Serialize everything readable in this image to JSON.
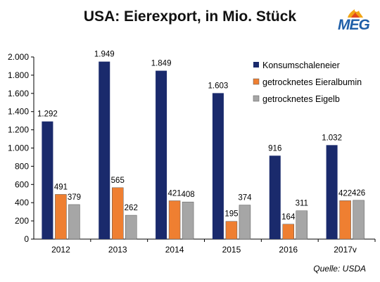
{
  "title": "USA: Eierexport, in Mio. Stück",
  "logo": {
    "text": "MEG",
    "icon": "meg-flame-logo"
  },
  "source": "Quelle: USDA",
  "colors": {
    "s1": "#1a2a6c",
    "s2": "#ef7f31",
    "s3": "#a6a6a6"
  },
  "chart_data": {
    "type": "bar",
    "title": "USA: Eierexport, in Mio. Stück",
    "xlabel": "",
    "ylabel": "",
    "categories": [
      "2012",
      "2013",
      "2014",
      "2015",
      "2016",
      "2017v"
    ],
    "series": [
      {
        "name": "Konsumschaleneier",
        "values": [
          1292,
          1949,
          1849,
          1603,
          916,
          1032
        ],
        "labels": [
          "1.292",
          "1.949",
          "1.849",
          "1.603",
          "916",
          "1.032"
        ]
      },
      {
        "name": "getrocknetes Eieralbumin",
        "values": [
          491,
          565,
          421,
          195,
          164,
          422
        ],
        "labels": [
          "491",
          "565",
          "421",
          "195",
          "164",
          "422"
        ]
      },
      {
        "name": "getrocknetes Eigelb",
        "values": [
          379,
          262,
          408,
          374,
          311,
          426
        ],
        "labels": [
          "379",
          "262",
          "408",
          "374",
          "311",
          "426"
        ]
      }
    ],
    "ylim": [
      0,
      2000
    ],
    "yticks": [
      0,
      200,
      400,
      600,
      800,
      1000,
      1200,
      1400,
      1600,
      1800,
      2000
    ],
    "ytick_labels": [
      "0",
      "200",
      "400",
      "600",
      "800",
      "1.000",
      "1.200",
      "1.400",
      "1.600",
      "1.800",
      "2.000"
    ],
    "grid": false,
    "legend_position": "top-right"
  }
}
